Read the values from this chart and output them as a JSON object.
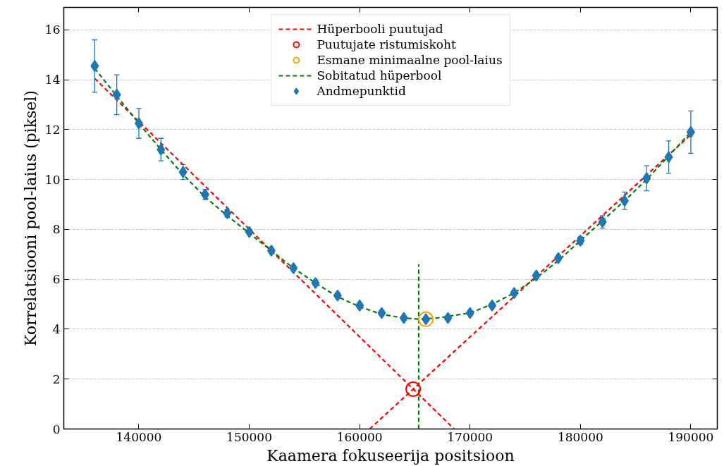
{
  "chart_data": {
    "type": "scatter",
    "xlabel": "Kaamera fokuseerija positsioon",
    "ylabel": "Korrelatsiooni pool-laius (piksel)",
    "xlim": [
      133200,
      192400
    ],
    "ylim": [
      0,
      16.9
    ],
    "xticks": [
      140000,
      150000,
      160000,
      170000,
      180000,
      190000
    ],
    "yticks": [
      0,
      2,
      4,
      6,
      8,
      10,
      12,
      14,
      16
    ],
    "grid": true,
    "legend": "top",
    "series": [
      {
        "name": "Hüperbooli puutujad",
        "type": "line",
        "line_style": "dashed",
        "color": "#ff0000",
        "x": [
          136000,
          168560,
          null,
          160910,
          190000
        ],
        "values": [
          14.05,
          0,
          null,
          0,
          11.8
        ]
      },
      {
        "name": "Puutujate ristumiskoht",
        "type": "scatter",
        "marker": "circle",
        "color": "#ff0000",
        "x": [
          164850
        ],
        "values": [
          1.6
        ]
      },
      {
        "name": "Esmane minimaalne pool-laius",
        "type": "scatter",
        "marker": "circle",
        "color": "#ffa500",
        "x": [
          166000
        ],
        "values": [
          4.4
        ]
      },
      {
        "name": "Sobitatud hüperbool",
        "type": "line",
        "line_style": "dashed",
        "color": "#008000",
        "x": [
          136000,
          138000,
          140000,
          142000,
          144000,
          146000,
          148000,
          150000,
          152000,
          154000,
          156000,
          158000,
          160000,
          162000,
          164000,
          165500,
          167000,
          170000,
          172000,
          174000,
          176000,
          178000,
          180000,
          182000,
          184000,
          186000,
          188000,
          190000
        ],
        "values": [
          14.45,
          13.35,
          12.25,
          11.2,
          10.2,
          9.3,
          8.55,
          7.85,
          7.15,
          6.45,
          5.85,
          5.3,
          4.9,
          4.6,
          4.45,
          4.4,
          4.45,
          4.65,
          5.0,
          5.45,
          6.05,
          6.75,
          7.55,
          8.35,
          9.15,
          10.0,
          10.95,
          11.9
        ]
      },
      {
        "type": "line",
        "line_style": "dashed",
        "color": "#008000",
        "x": [
          165350,
          165350
        ],
        "values": [
          0,
          6.6
        ]
      },
      {
        "name": "Andmepunktid",
        "marker": "diamond",
        "color": "#1f77b4",
        "x": [
          136000,
          138000,
          140000,
          142000,
          144000,
          146000,
          148000,
          150000,
          152000,
          154000,
          156000,
          158000,
          160000,
          162000,
          164000,
          166000,
          168000,
          170000,
          172000,
          174000,
          176000,
          178000,
          180000,
          182000,
          184000,
          186000,
          188000,
          190000
        ],
        "values": [
          14.55,
          13.4,
          12.25,
          11.2,
          10.3,
          9.4,
          8.65,
          7.9,
          7.15,
          6.45,
          5.85,
          5.35,
          4.95,
          4.65,
          4.45,
          4.4,
          4.45,
          4.65,
          4.95,
          5.45,
          6.15,
          6.85,
          7.55,
          8.3,
          9.15,
          10.05,
          10.9,
          11.9
        ],
        "errors": [
          1.05,
          0.8,
          0.6,
          0.45,
          0.3,
          0.2,
          0.15,
          0.1,
          0.1,
          0.1,
          0.1,
          0.1,
          0.1,
          0.1,
          0.1,
          0.1,
          0.1,
          0.1,
          0.1,
          0.1,
          0.1,
          0.1,
          0.15,
          0.25,
          0.35,
          0.5,
          0.65,
          0.85
        ]
      }
    ]
  }
}
